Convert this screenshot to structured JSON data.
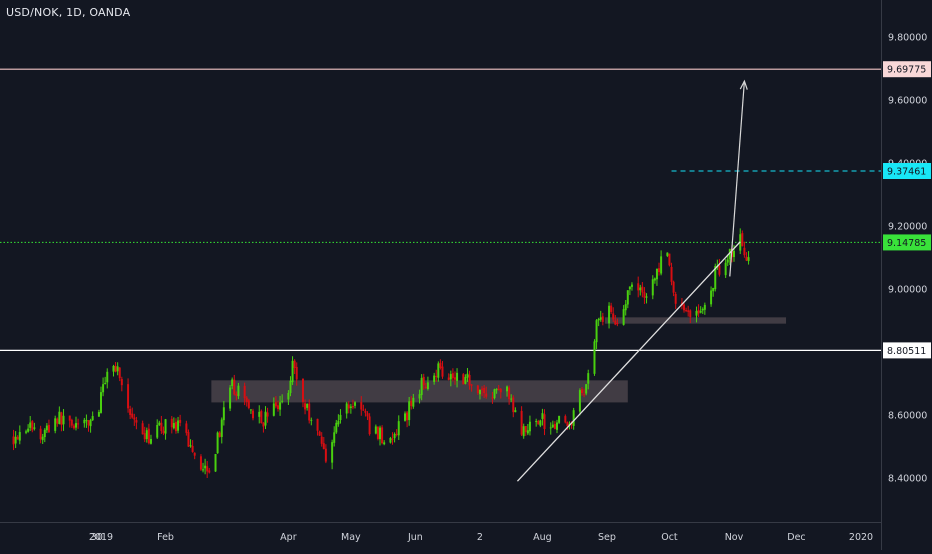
{
  "header": {
    "title": "USD/NOK, 1D, OANDA"
  },
  "colors": {
    "background": "#131722",
    "up": "#49d00f",
    "down": "#d80e12",
    "axis_text": "#d1d4dc",
    "axis_line": "#363a45",
    "white_line": "#ffffff",
    "pink_line": "#f3c6c6",
    "green_line": "#35e635",
    "cyan": "#16e0f5",
    "zone": "#4a434a"
  },
  "chart_data": {
    "type": "candlestick",
    "symbol": "USD/NOK",
    "interval": "1D",
    "source": "OANDA",
    "ylim": [
      8.3,
      9.9
    ],
    "y_ticks": [
      "8.40000",
      "8.60000",
      "8.80000",
      "9.00000",
      "9.20000",
      "9.40000",
      "9.60000",
      "9.80000"
    ],
    "x_ticks": [
      {
        "label": "30",
        "date": "2018-12-30"
      },
      {
        "label": "2019",
        "date": "2019-01-01"
      },
      {
        "label": "Feb",
        "date": "2019-02-01"
      },
      {
        "label": "Apr",
        "date": "2019-04-01"
      },
      {
        "label": "May",
        "date": "2019-05-01"
      },
      {
        "label": "Jun",
        "date": "2019-06-01"
      },
      {
        "label": "2",
        "date": "2019-07-02"
      },
      {
        "label": "Aug",
        "date": "2019-08-01"
      },
      {
        "label": "Sep",
        "date": "2019-09-01"
      },
      {
        "label": "Oct",
        "date": "2019-10-01"
      },
      {
        "label": "Nov",
        "date": "2019-11-01"
      },
      {
        "label": "Dec",
        "date": "2019-12-01"
      },
      {
        "label": "2020",
        "date": "2020-01-01"
      }
    ],
    "price_path": [
      [
        "2018-11-20",
        8.53
      ],
      [
        "2018-11-27",
        8.57
      ],
      [
        "2018-12-03",
        8.53
      ],
      [
        "2018-12-10",
        8.59
      ],
      [
        "2018-12-17",
        8.58
      ],
      [
        "2018-12-24",
        8.56
      ],
      [
        "2018-12-31",
        8.62
      ],
      [
        "2019-01-03",
        8.72
      ],
      [
        "2019-01-07",
        8.77
      ],
      [
        "2019-01-10",
        8.73
      ],
      [
        "2019-01-15",
        8.59
      ],
      [
        "2019-01-21",
        8.52
      ],
      [
        "2019-01-28",
        8.55
      ],
      [
        "2019-02-04",
        8.58
      ],
      [
        "2019-02-11",
        8.53
      ],
      [
        "2019-02-18",
        8.44
      ],
      [
        "2019-02-23",
        8.44
      ],
      [
        "2019-02-28",
        8.58
      ],
      [
        "2019-03-05",
        8.69
      ],
      [
        "2019-03-12",
        8.64
      ],
      [
        "2019-03-19",
        8.58
      ],
      [
        "2019-03-25",
        8.62
      ],
      [
        "2019-03-31",
        8.65
      ],
      [
        "2019-04-03",
        8.77
      ],
      [
        "2019-04-08",
        8.64
      ],
      [
        "2019-04-14",
        8.57
      ],
      [
        "2019-04-19",
        8.47
      ],
      [
        "2019-04-24",
        8.57
      ],
      [
        "2019-04-29",
        8.63
      ],
      [
        "2019-05-05",
        8.64
      ],
      [
        "2019-05-10",
        8.56
      ],
      [
        "2019-05-15",
        8.54
      ],
      [
        "2019-05-20",
        8.51
      ],
      [
        "2019-05-27",
        8.59
      ],
      [
        "2019-06-01",
        8.67
      ],
      [
        "2019-06-06",
        8.71
      ],
      [
        "2019-06-12",
        8.75
      ],
      [
        "2019-06-18",
        8.73
      ],
      [
        "2019-06-25",
        8.72
      ],
      [
        "2019-07-01",
        8.69
      ],
      [
        "2019-07-07",
        8.65
      ],
      [
        "2019-07-13",
        8.7
      ],
      [
        "2019-07-19",
        8.6
      ],
      [
        "2019-07-24",
        8.53
      ],
      [
        "2019-07-29",
        8.6
      ],
      [
        "2019-08-03",
        8.57
      ],
      [
        "2019-08-08",
        8.58
      ],
      [
        "2019-08-13",
        8.56
      ],
      [
        "2019-08-18",
        8.64
      ],
      [
        "2019-08-23",
        8.72
      ],
      [
        "2019-08-27",
        8.9
      ],
      [
        "2019-09-01",
        8.93
      ],
      [
        "2019-09-04",
        8.91
      ],
      [
        "2019-09-07",
        8.9
      ],
      [
        "2019-09-11",
        8.98
      ],
      [
        "2019-09-16",
        9.01
      ],
      [
        "2019-09-20",
        8.98
      ],
      [
        "2019-09-25",
        9.05
      ],
      [
        "2019-09-29",
        9.13
      ],
      [
        "2019-10-03",
        8.98
      ],
      [
        "2019-10-07",
        8.94
      ],
      [
        "2019-10-11",
        8.93
      ],
      [
        "2019-10-15",
        8.92
      ],
      [
        "2019-10-19",
        8.95
      ],
      [
        "2019-10-23",
        9.05
      ],
      [
        "2019-10-27",
        9.09
      ],
      [
        "2019-11-01",
        9.13
      ],
      [
        "2019-11-04",
        9.16
      ],
      [
        "2019-11-06",
        9.1
      ],
      [
        "2019-11-08",
        9.12
      ]
    ],
    "horizontal_levels": [
      {
        "value": 9.69775,
        "label": "9.69775",
        "style": "pink-solid"
      },
      {
        "value": 9.37461,
        "label": "9.37461",
        "style": "cyan-dashed"
      },
      {
        "value": 9.14785,
        "label": "9.14785",
        "style": "green-dotted"
      },
      {
        "value": 8.80511,
        "label": "8.80511",
        "style": "white-solid"
      }
    ],
    "zones": [
      {
        "from": "2019-02-23",
        "to": "2019-09-11",
        "low": 8.64,
        "high": 8.71
      },
      {
        "from": "2019-08-31",
        "to": "2019-11-26",
        "low": 8.89,
        "high": 8.91
      }
    ],
    "trendline": {
      "from": [
        "2019-07-20",
        8.39
      ],
      "to": [
        "2019-11-04",
        9.15
      ]
    },
    "projection_arrow": {
      "from": [
        "2019-10-30",
        9.04
      ],
      "to": [
        "2019-11-06",
        9.66
      ]
    }
  }
}
